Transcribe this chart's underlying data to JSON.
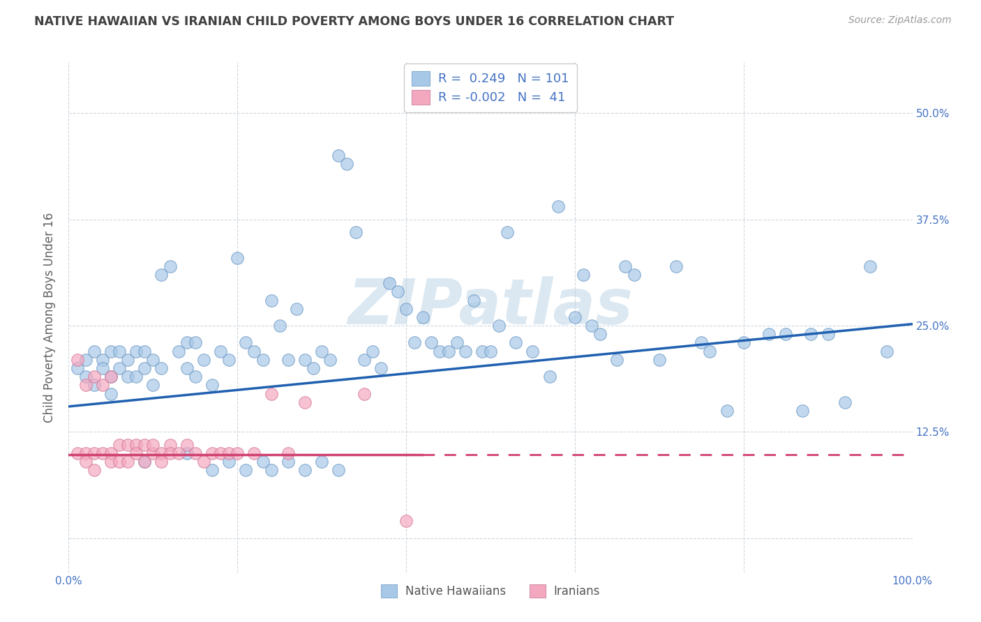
{
  "title": "NATIVE HAWAIIAN VS IRANIAN CHILD POVERTY AMONG BOYS UNDER 16 CORRELATION CHART",
  "source": "Source: ZipAtlas.com",
  "ylabel": "Child Poverty Among Boys Under 16",
  "watermark": "ZIPatlas",
  "xlim": [
    0.0,
    1.0
  ],
  "ylim": [
    -0.04,
    0.56
  ],
  "xticks": [
    0.0,
    0.2,
    0.4,
    0.6,
    0.8,
    1.0
  ],
  "xticklabels": [
    "0.0%",
    "",
    "",
    "",
    "",
    "100.0%"
  ],
  "ytick_positions": [
    0.0,
    0.125,
    0.25,
    0.375,
    0.5
  ],
  "ytick_labels": [
    "",
    "12.5%",
    "25.0%",
    "37.5%",
    "50.0%"
  ],
  "legend_r_blue": "0.249",
  "legend_n_blue": "101",
  "legend_r_pink": "-0.002",
  "legend_n_pink": "41",
  "blue_color": "#a8c8e8",
  "pink_color": "#f4a8c0",
  "line_blue": "#2060b0",
  "line_pink": "#d04070",
  "grid_color": "#d0d8e0",
  "background_color": "#ffffff",
  "title_color": "#404040",
  "axis_label_color": "#4472c4",
  "ylabel_color": "#606060",
  "blue_line_start_y": 0.155,
  "blue_line_end_y": 0.252,
  "pink_line_y": 0.098,
  "blue_scatter_x": [
    0.01,
    0.02,
    0.02,
    0.03,
    0.03,
    0.04,
    0.04,
    0.05,
    0.05,
    0.05,
    0.06,
    0.06,
    0.07,
    0.07,
    0.08,
    0.08,
    0.09,
    0.09,
    0.1,
    0.1,
    0.11,
    0.11,
    0.12,
    0.13,
    0.14,
    0.14,
    0.15,
    0.15,
    0.16,
    0.17,
    0.18,
    0.19,
    0.2,
    0.21,
    0.22,
    0.23,
    0.24,
    0.25,
    0.26,
    0.27,
    0.28,
    0.29,
    0.3,
    0.31,
    0.32,
    0.33,
    0.34,
    0.35,
    0.36,
    0.37,
    0.38,
    0.39,
    0.4,
    0.41,
    0.42,
    0.43,
    0.44,
    0.45,
    0.46,
    0.47,
    0.48,
    0.49,
    0.5,
    0.51,
    0.52,
    0.53,
    0.55,
    0.57,
    0.58,
    0.6,
    0.61,
    0.62,
    0.63,
    0.65,
    0.66,
    0.67,
    0.7,
    0.72,
    0.75,
    0.76,
    0.78,
    0.8,
    0.83,
    0.85,
    0.87,
    0.88,
    0.9,
    0.92,
    0.95,
    0.97,
    0.09,
    0.14,
    0.17,
    0.19,
    0.21,
    0.23,
    0.24,
    0.26,
    0.28,
    0.3,
    0.32
  ],
  "blue_scatter_y": [
    0.2,
    0.21,
    0.19,
    0.22,
    0.18,
    0.21,
    0.2,
    0.22,
    0.19,
    0.17,
    0.22,
    0.2,
    0.19,
    0.21,
    0.22,
    0.19,
    0.22,
    0.2,
    0.18,
    0.21,
    0.31,
    0.2,
    0.32,
    0.22,
    0.23,
    0.2,
    0.23,
    0.19,
    0.21,
    0.18,
    0.22,
    0.21,
    0.33,
    0.23,
    0.22,
    0.21,
    0.28,
    0.25,
    0.21,
    0.27,
    0.21,
    0.2,
    0.22,
    0.21,
    0.45,
    0.44,
    0.36,
    0.21,
    0.22,
    0.2,
    0.3,
    0.29,
    0.27,
    0.23,
    0.26,
    0.23,
    0.22,
    0.22,
    0.23,
    0.22,
    0.28,
    0.22,
    0.22,
    0.25,
    0.36,
    0.23,
    0.22,
    0.19,
    0.39,
    0.26,
    0.31,
    0.25,
    0.24,
    0.21,
    0.32,
    0.31,
    0.21,
    0.32,
    0.23,
    0.22,
    0.15,
    0.23,
    0.24,
    0.24,
    0.15,
    0.24,
    0.24,
    0.16,
    0.32,
    0.22,
    0.09,
    0.1,
    0.08,
    0.09,
    0.08,
    0.09,
    0.08,
    0.09,
    0.08,
    0.09,
    0.08
  ],
  "pink_scatter_x": [
    0.01,
    0.01,
    0.02,
    0.02,
    0.02,
    0.03,
    0.03,
    0.03,
    0.04,
    0.04,
    0.05,
    0.05,
    0.05,
    0.06,
    0.06,
    0.07,
    0.07,
    0.08,
    0.08,
    0.09,
    0.09,
    0.1,
    0.1,
    0.11,
    0.11,
    0.12,
    0.12,
    0.13,
    0.14,
    0.15,
    0.16,
    0.17,
    0.18,
    0.19,
    0.2,
    0.22,
    0.24,
    0.26,
    0.28,
    0.35,
    0.4
  ],
  "pink_scatter_y": [
    0.21,
    0.1,
    0.18,
    0.1,
    0.09,
    0.19,
    0.1,
    0.08,
    0.18,
    0.1,
    0.19,
    0.1,
    0.09,
    0.11,
    0.09,
    0.11,
    0.09,
    0.11,
    0.1,
    0.11,
    0.09,
    0.1,
    0.11,
    0.1,
    0.09,
    0.11,
    0.1,
    0.1,
    0.11,
    0.1,
    0.09,
    0.1,
    0.1,
    0.1,
    0.1,
    0.1,
    0.17,
    0.1,
    0.16,
    0.17,
    0.02
  ]
}
